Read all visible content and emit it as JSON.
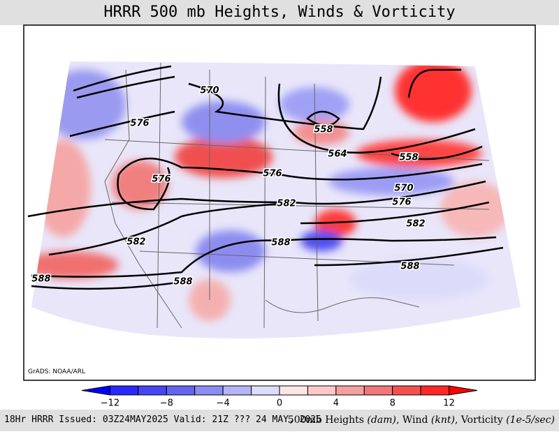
{
  "header": {
    "title": "HRRR 500 mb Heights, Winds & Vorticity"
  },
  "map": {
    "credit": "GrADS: NOAA/ARL",
    "contour_labels": [
      "570",
      "576",
      "558",
      "564",
      "558",
      "576",
      "576",
      "570",
      "576",
      "582",
      "582",
      "582",
      "588",
      "588",
      "588",
      "588"
    ]
  },
  "colorbar": {
    "labels": [
      "−12",
      "−8",
      "−4",
      "0",
      "4",
      "8",
      "12"
    ]
  },
  "footer": {
    "left": "18Hr HRRR Issued: 03Z24MAY2025 Valid: 21Z ??? 24 MAY, 2025",
    "right": [
      "500mb Heights ",
      "(dam)",
      ", Wind ",
      "(knt)",
      ", Vorticity ",
      "(1e-5/sec)"
    ]
  }
}
